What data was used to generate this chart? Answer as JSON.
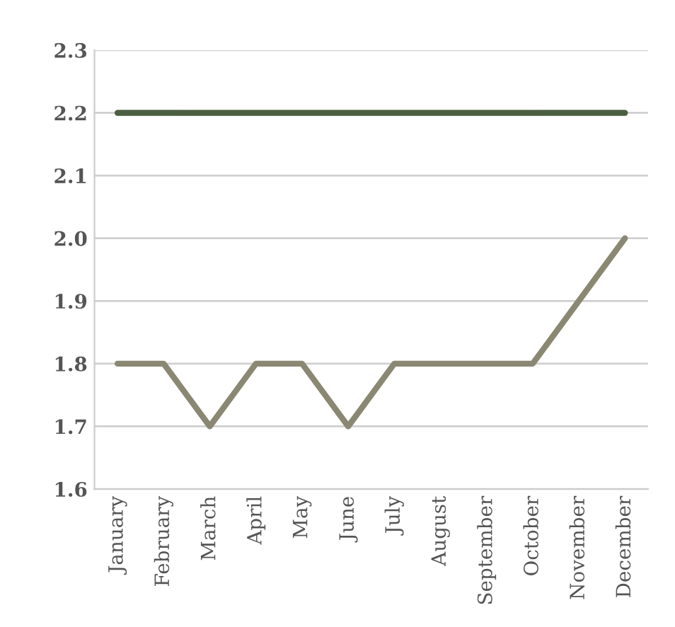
{
  "chart_data": {
    "type": "line",
    "categories": [
      "January",
      "February",
      "March",
      "April",
      "May",
      "June",
      "July",
      "August",
      "September",
      "October",
      "November",
      "December"
    ],
    "series": [
      {
        "color": "#4b5e3f",
        "values": [
          2.2,
          2.2,
          2.2,
          2.2,
          2.2,
          2.2,
          2.2,
          2.2,
          2.2,
          2.2,
          2.2,
          2.2
        ]
      },
      {
        "color": "#8a8872",
        "values": [
          1.8,
          1.8,
          1.7,
          1.8,
          1.8,
          1.7,
          1.8,
          1.8,
          1.8,
          1.8,
          1.9,
          2.0
        ]
      }
    ],
    "ylim": [
      1.6,
      2.3
    ],
    "yticks": [
      {
        "value": 1.6,
        "label": "1.6"
      },
      {
        "value": 1.7,
        "label": "1.7"
      },
      {
        "value": 1.8,
        "label": "1.8"
      },
      {
        "value": 1.9,
        "label": "1.9"
      },
      {
        "value": 2.0,
        "label": "2.0"
      },
      {
        "value": 2.1,
        "label": "2.1"
      },
      {
        "value": 2.2,
        "label": "2.2"
      },
      {
        "value": 2.3,
        "label": "2.3"
      }
    ],
    "grid": "y",
    "marker": "none",
    "line_style": "solid"
  }
}
